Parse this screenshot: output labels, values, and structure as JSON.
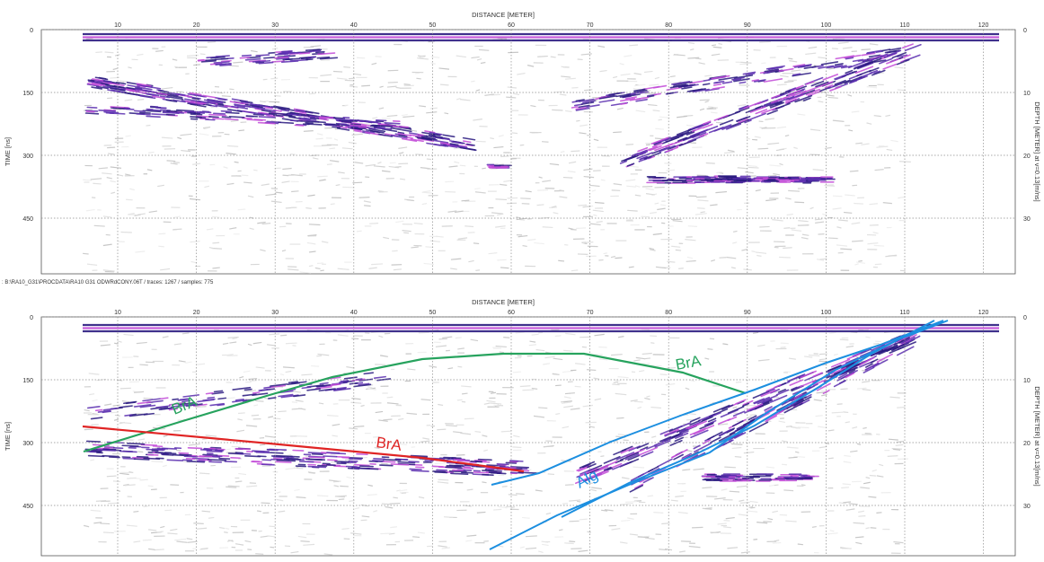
{
  "colors": {
    "trace_purple": "#5b2fb0",
    "trace_dark": "#2a1a80",
    "trace_magenta": "#c24bd8",
    "grid": "#8c8c8c",
    "green_line": "#27a35e",
    "red_line": "#e02424",
    "blue_line": "#1c8fe0"
  },
  "axes": {
    "x_title": "DISTANCE [METER]",
    "y_left_title": "TIME [ns]",
    "y_right_title": "DEPTH [METER] at v=0.13[m/ns]",
    "x_ticks": [
      "10",
      "20",
      "30",
      "40",
      "50",
      "60",
      "70",
      "80",
      "90",
      "100",
      "110",
      "120"
    ],
    "time_ticks": [
      "0",
      "150",
      "300",
      "450"
    ],
    "depth_ticks": [
      "0",
      "10",
      "20",
      "30"
    ]
  },
  "file_caption": ": B:\\RA10_G31\\PROCDATA\\RA10 G31 ODWRdCONY.06T / traces: 1267 / samples: 775",
  "annotations": [
    {
      "label": "BrA",
      "color_key": "green_line"
    },
    {
      "label": "BrA",
      "color_key": "green_line"
    },
    {
      "label": "BrA",
      "color_key": "red_line"
    },
    {
      "label": "Alg",
      "color_key": "blue_line"
    }
  ]
}
